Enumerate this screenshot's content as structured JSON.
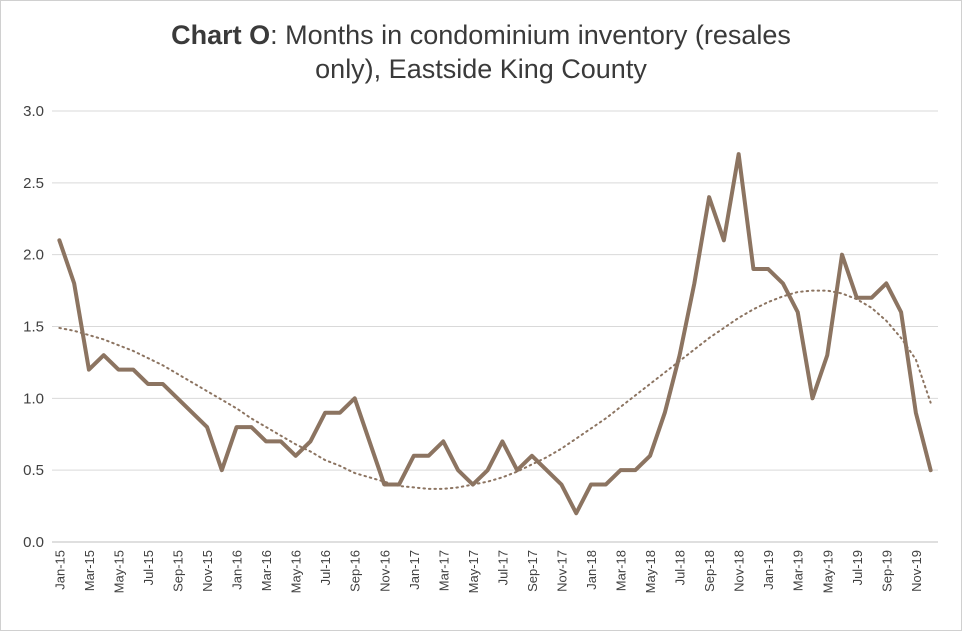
{
  "title": {
    "lead": "Chart O",
    "rest_line1": ": Months in condominium inventory (resales",
    "rest_line2": "only), Eastside King County"
  },
  "chart_data": {
    "type": "line",
    "title": "Chart O: Months in condominium inventory (resales only), Eastside King County",
    "xlabel": "",
    "ylabel": "",
    "ylim": [
      0,
      3.0
    ],
    "yticks": [
      "0.0",
      "0.5",
      "1.0",
      "1.5",
      "2.0",
      "2.5",
      "3.0"
    ],
    "grid": "horizontal",
    "legend": "none",
    "x": [
      "Jan-15",
      "Feb-15",
      "Mar-15",
      "Apr-15",
      "May-15",
      "Jun-15",
      "Jul-15",
      "Aug-15",
      "Sep-15",
      "Oct-15",
      "Nov-15",
      "Dec-15",
      "Jan-16",
      "Feb-16",
      "Mar-16",
      "Apr-16",
      "May-16",
      "Jun-16",
      "Jul-16",
      "Aug-16",
      "Sep-16",
      "Oct-16",
      "Nov-16",
      "Dec-16",
      "Jan-17",
      "Feb-17",
      "Mar-17",
      "Apr-17",
      "May-17",
      "Jun-17",
      "Jul-17",
      "Aug-17",
      "Sep-17",
      "Oct-17",
      "Nov-17",
      "Dec-17",
      "Jan-18",
      "Feb-18",
      "Mar-18",
      "Apr-18",
      "May-18",
      "Jun-18",
      "Jul-18",
      "Aug-18",
      "Sep-18",
      "Oct-18",
      "Nov-18",
      "Dec-18",
      "Jan-19",
      "Feb-19",
      "Mar-19",
      "Apr-19",
      "May-19",
      "Jun-19",
      "Jul-19",
      "Aug-19",
      "Sep-19",
      "Oct-19",
      "Nov-19",
      "Dec-19"
    ],
    "xtick_labels": [
      "Jan-15",
      "Mar-15",
      "May-15",
      "Jul-15",
      "Sep-15",
      "Nov-15",
      "Jan-16",
      "Mar-16",
      "May-16",
      "Jul-16",
      "Sep-16",
      "Nov-16",
      "Jan-17",
      "Mar-17",
      "May-17",
      "Jul-17",
      "Sep-17",
      "Nov-17",
      "Jan-18",
      "Mar-18",
      "May-18",
      "Jul-18",
      "Sep-18",
      "Nov-18",
      "Jan-19",
      "Mar-19",
      "May-19",
      "Jul-19",
      "Sep-19",
      "Nov-19"
    ],
    "series": [
      {
        "values": [
          2.1,
          1.8,
          1.2,
          1.3,
          1.2,
          1.2,
          1.1,
          1.1,
          1.0,
          0.9,
          0.8,
          0.5,
          0.8,
          0.8,
          0.7,
          0.7,
          0.6,
          0.7,
          0.9,
          0.9,
          1.0,
          0.7,
          0.4,
          0.4,
          0.6,
          0.6,
          0.7,
          0.5,
          0.4,
          0.5,
          0.7,
          0.5,
          0.6,
          0.5,
          0.4,
          0.2,
          0.4,
          0.4,
          0.5,
          0.5,
          0.6,
          0.9,
          1.3,
          1.8,
          2.4,
          2.1,
          2.7,
          1.9,
          1.9,
          1.8,
          1.6,
          1.0,
          1.3,
          2.0,
          1.7,
          1.7,
          1.8,
          1.6,
          0.9,
          0.5
        ],
        "color": "#8c7461",
        "style": "solid"
      },
      {
        "values": [
          1.49,
          1.47,
          1.44,
          1.41,
          1.37,
          1.33,
          1.28,
          1.23,
          1.17,
          1.11,
          1.05,
          0.99,
          0.93,
          0.86,
          0.8,
          0.74,
          0.68,
          0.63,
          0.57,
          0.53,
          0.48,
          0.45,
          0.42,
          0.39,
          0.38,
          0.37,
          0.37,
          0.38,
          0.4,
          0.42,
          0.45,
          0.49,
          0.54,
          0.59,
          0.65,
          0.72,
          0.79,
          0.86,
          0.94,
          1.02,
          1.1,
          1.18,
          1.26,
          1.34,
          1.42,
          1.49,
          1.56,
          1.62,
          1.67,
          1.71,
          1.74,
          1.75,
          1.75,
          1.73,
          1.69,
          1.63,
          1.54,
          1.42,
          1.27,
          0.97
        ],
        "color": "#8c7461",
        "style": "dotted"
      }
    ]
  }
}
